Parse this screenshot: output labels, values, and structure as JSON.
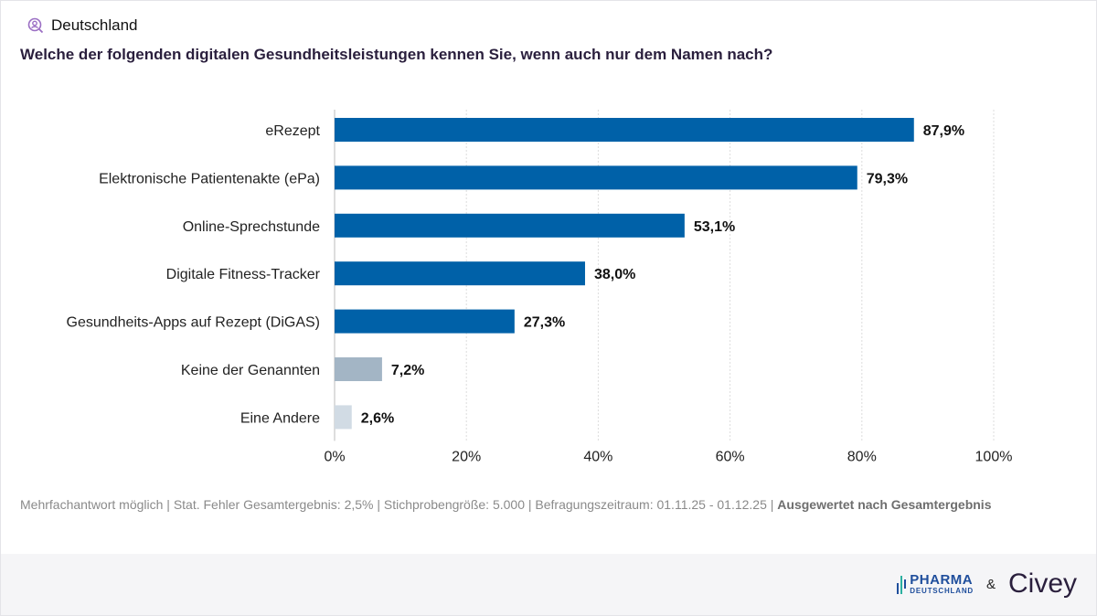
{
  "header": {
    "region": "Deutschland",
    "region_icon": "person-search-icon",
    "question": "Welche der folgenden digitalen Gesundheitsleistungen kennen Sie, wenn auch nur dem Namen nach?"
  },
  "chart_data": {
    "type": "bar",
    "orientation": "horizontal",
    "categories": [
      "eRezept",
      "Elektronische Patientenakte (ePa)",
      "Online-Sprechstunde",
      "Digitale Fitness-Tracker",
      "Gesundheits-Apps auf Rezept (DiGAS)",
      "Keine der Genannten",
      "Eine Andere"
    ],
    "values": [
      87.9,
      79.3,
      53.1,
      38.0,
      27.3,
      7.2,
      2.6
    ],
    "value_labels": [
      "87,9%",
      "79,3%",
      "53,1%",
      "38,0%",
      "27,3%",
      "7,2%",
      "2,6%"
    ],
    "colors": [
      "#0061a8",
      "#0061a8",
      "#0061a8",
      "#0061a8",
      "#0061a8",
      "#a3b5c5",
      "#d1dbe4"
    ],
    "xlim": [
      0,
      100
    ],
    "xticks": [
      0,
      20,
      40,
      60,
      80,
      100
    ],
    "xtick_labels": [
      "0%",
      "20%",
      "40%",
      "60%",
      "80%",
      "100%"
    ],
    "grid": true
  },
  "footnote": {
    "text": "Mehrfachantwort möglich | Stat. Fehler Gesamtergebnis: 2,5% | Stichprobengröße: 5.000 | Befragungszeitraum: 01.11.25 - 01.12.25 | ",
    "bold": "Ausgewertet nach Gesamtergebnis"
  },
  "footer": {
    "logo1_line1": "PHARMA",
    "logo1_line2": "DEUTSCHLAND",
    "amp": "&",
    "logo2": "Civey"
  }
}
